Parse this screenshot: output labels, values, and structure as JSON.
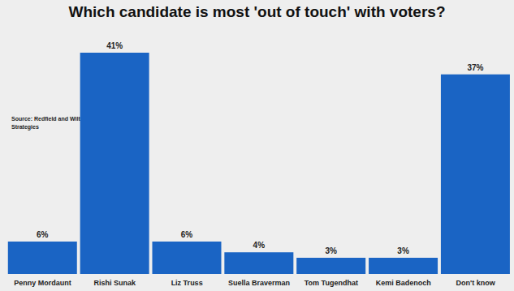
{
  "chart_data": {
    "type": "bar",
    "title": "Which candidate is most 'out of touch' with voters?",
    "annotations": [
      "Source: Redfield and Wilton Strategies"
    ],
    "categories": [
      "Penny Mordaunt",
      "Rishi Sunak",
      "Liz Truss",
      "Suella Braverman",
      "Tom Tugendhat",
      "Kemi Badenoch",
      "Don't know"
    ],
    "values": [
      6,
      41,
      6,
      4,
      3,
      3,
      37
    ],
    "value_labels": [
      "6%",
      "41%",
      "6%",
      "4%",
      "3%",
      "3%",
      "37%"
    ],
    "color": "#1a64c4",
    "ylim": [
      0,
      41
    ],
    "grid": false,
    "data_labels": true,
    "tick_labels": "x"
  }
}
